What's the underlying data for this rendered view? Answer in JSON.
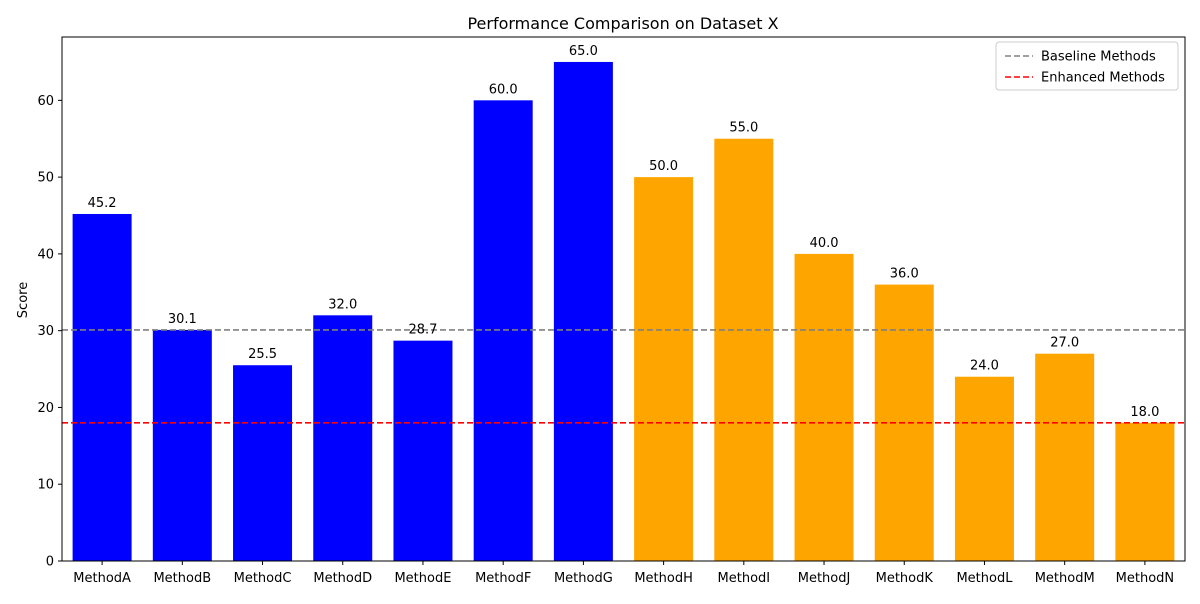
{
  "chart_data": {
    "type": "bar",
    "title": "Performance Comparison on Dataset X",
    "xlabel": "",
    "ylabel": "Score",
    "ylim": [
      0,
      68.25
    ],
    "yticks": [
      0,
      10,
      20,
      30,
      40,
      50,
      60
    ],
    "grid": false,
    "legend_position": "top-right",
    "categories": [
      "MethodA",
      "MethodB",
      "MethodC",
      "MethodD",
      "MethodE",
      "MethodF",
      "MethodG",
      "MethodH",
      "MethodI",
      "MethodJ",
      "MethodK",
      "MethodL",
      "MethodM",
      "MethodN"
    ],
    "values": [
      45.2,
      30.1,
      25.5,
      32.0,
      28.7,
      60.0,
      65.0,
      50.0,
      55.0,
      40.0,
      36.0,
      24.0,
      27.0,
      18.0
    ],
    "value_labels": [
      "45.2",
      "30.1",
      "25.5",
      "32.0",
      "28.7",
      "60.0",
      "65.0",
      "50.0",
      "55.0",
      "40.0",
      "36.0",
      "24.0",
      "27.0",
      "18.0"
    ],
    "bar_colors": [
      "#0000ff",
      "#0000ff",
      "#0000ff",
      "#0000ff",
      "#0000ff",
      "#0000ff",
      "#0000ff",
      "#ffa500",
      "#ffa500",
      "#ffa500",
      "#ffa500",
      "#ffa500",
      "#ffa500",
      "#ffa500"
    ],
    "reference_lines": [
      {
        "name": "Baseline Methods",
        "y": 30.1,
        "color": "#808080",
        "style": "dashed"
      },
      {
        "name": "Enhanced Methods",
        "y": 18.0,
        "color": "#ff0000",
        "style": "dashed"
      }
    ]
  }
}
